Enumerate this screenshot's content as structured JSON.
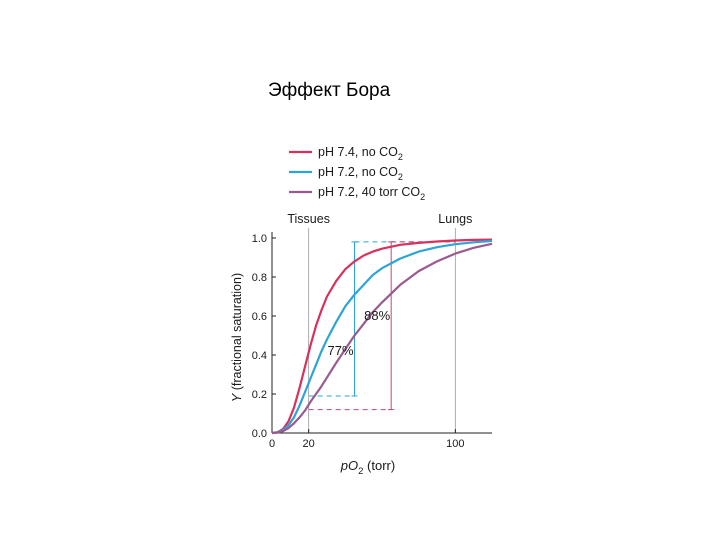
{
  "slide": {
    "title": "Эффект Бора"
  },
  "chart_data": {
    "type": "line",
    "xlabel_main": "pO",
    "xlabel_sub": "2",
    "xlabel_unit": " (torr)",
    "ylabel_symbol": "Y",
    "ylabel_text": " (fractional saturation)",
    "xlim": [
      0,
      120
    ],
    "ylim": [
      0,
      1.0
    ],
    "x_ticks": [
      "0",
      "20",
      "100"
    ],
    "x_tick_values": [
      0,
      20,
      100
    ],
    "y_ticks": [
      "0.0",
      "0.2",
      "0.4",
      "0.6",
      "0.8",
      "1.0"
    ],
    "y_tick_values": [
      0,
      0.2,
      0.4,
      0.6,
      0.8,
      1.0
    ],
    "region_labels": [
      {
        "text": "Tissues",
        "x": 20
      },
      {
        "text": "Lungs",
        "x": 100
      }
    ],
    "legend": [
      {
        "prefix": "pH 7.4, no CO",
        "sub": "2",
        "color": "#d8315b"
      },
      {
        "prefix": "pH 7.2, no CO",
        "sub": "2",
        "color": "#2ea3d6"
      },
      {
        "prefix": "pH 7.2, 40 torr CO",
        "sub": "2",
        "color": "#9a5a8e"
      }
    ],
    "series": [
      {
        "color": "#d8315b",
        "x": [
          0,
          3,
          6,
          9,
          12,
          15,
          18,
          21,
          24,
          27,
          30,
          35,
          40,
          45,
          50,
          55,
          60,
          70,
          80,
          90,
          100,
          110,
          120
        ],
        "y": [
          0,
          0.004,
          0.02,
          0.06,
          0.13,
          0.23,
          0.34,
          0.45,
          0.55,
          0.63,
          0.7,
          0.78,
          0.84,
          0.88,
          0.91,
          0.93,
          0.945,
          0.965,
          0.975,
          0.982,
          0.987,
          0.99,
          0.992
        ]
      },
      {
        "color": "#2ea3d6",
        "x": [
          0,
          3,
          6,
          9,
          12,
          15,
          18,
          21,
          24,
          27,
          30,
          35,
          40,
          45,
          50,
          55,
          60,
          70,
          80,
          90,
          100,
          110,
          120
        ],
        "y": [
          0,
          0.003,
          0.015,
          0.04,
          0.08,
          0.14,
          0.21,
          0.28,
          0.35,
          0.42,
          0.48,
          0.57,
          0.65,
          0.71,
          0.76,
          0.81,
          0.845,
          0.895,
          0.93,
          0.953,
          0.968,
          0.978,
          0.985
        ]
      },
      {
        "color": "#9a5a8e",
        "x": [
          0,
          3,
          6,
          9,
          12,
          15,
          18,
          21,
          24,
          27,
          30,
          35,
          40,
          45,
          50,
          55,
          60,
          70,
          80,
          90,
          100,
          110,
          120
        ],
        "y": [
          0,
          0.002,
          0.01,
          0.025,
          0.05,
          0.08,
          0.115,
          0.16,
          0.2,
          0.24,
          0.285,
          0.36,
          0.43,
          0.5,
          0.56,
          0.62,
          0.67,
          0.76,
          0.83,
          0.88,
          0.92,
          0.95,
          0.97
        ]
      }
    ],
    "annotations": [
      {
        "text": "77%",
        "x_data": 45,
        "y_data": 0.19,
        "y2_data": 0.98,
        "color": "#2ea3d6",
        "label_y": 0.4
      },
      {
        "text": "88%",
        "x_data": 65,
        "y_data": 0.12,
        "y2_data": 0.98,
        "color": "#c0477d",
        "label_y": 0.58
      }
    ],
    "grid": false
  }
}
